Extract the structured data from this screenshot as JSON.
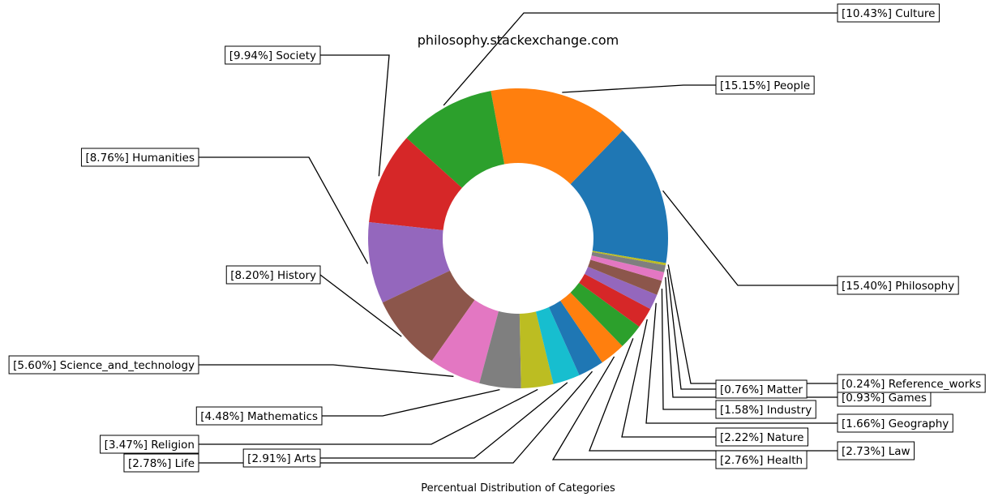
{
  "chart_data": {
    "type": "pie",
    "title": "philosophy.stackexchange.com",
    "xlabel": "Percentual Distribution of Categories",
    "slices": [
      {
        "label": "[15.40%] Philosophy",
        "category": "Philosophy",
        "value": 15.4,
        "color": "#1f77b4"
      },
      {
        "label": "[15.15%] People",
        "category": "People",
        "value": 15.15,
        "color": "#ff7f0e"
      },
      {
        "label": "[10.43%] Culture",
        "category": "Culture",
        "value": 10.43,
        "color": "#2ca02c"
      },
      {
        "label": "[9.94%] Society",
        "category": "Society",
        "value": 9.94,
        "color": "#d62728"
      },
      {
        "label": "[8.76%] Humanities",
        "category": "Humanities",
        "value": 8.76,
        "color": "#9467bd"
      },
      {
        "label": "[8.20%] History",
        "category": "History",
        "value": 8.2,
        "color": "#8c564b"
      },
      {
        "label": "[5.60%] Science_and_technology",
        "category": "Science_and_technology",
        "value": 5.6,
        "color": "#e377c2"
      },
      {
        "label": "[4.48%] Mathematics",
        "category": "Mathematics",
        "value": 4.48,
        "color": "#7f7f7f"
      },
      {
        "label": "[3.47%] Religion",
        "category": "Religion",
        "value": 3.47,
        "color": "#bcbd22"
      },
      {
        "label": "[2.91%] Arts",
        "category": "Arts",
        "value": 2.91,
        "color": "#17becf"
      },
      {
        "label": "[2.78%] Life",
        "category": "Life",
        "value": 2.78,
        "color": "#1f77b4"
      },
      {
        "label": "[2.76%] Health",
        "category": "Health",
        "value": 2.76,
        "color": "#ff7f0e"
      },
      {
        "label": "[2.73%] Law",
        "category": "Law",
        "value": 2.73,
        "color": "#2ca02c"
      },
      {
        "label": "[2.22%] Nature",
        "category": "Nature",
        "value": 2.22,
        "color": "#d62728"
      },
      {
        "label": "[1.66%] Geography",
        "category": "Geography",
        "value": 1.66,
        "color": "#9467bd"
      },
      {
        "label": "[1.58%] Industry",
        "category": "Industry",
        "value": 1.58,
        "color": "#8c564b"
      },
      {
        "label": "[0.93%] Games",
        "category": "Games",
        "value": 0.93,
        "color": "#e377c2"
      },
      {
        "label": "[0.76%] Matter",
        "category": "Matter",
        "value": 0.76,
        "color": "#7f7f7f"
      },
      {
        "label": "[0.24%] Reference_works",
        "category": "Reference_works",
        "value": 0.24,
        "color": "#bcbd22"
      }
    ]
  }
}
